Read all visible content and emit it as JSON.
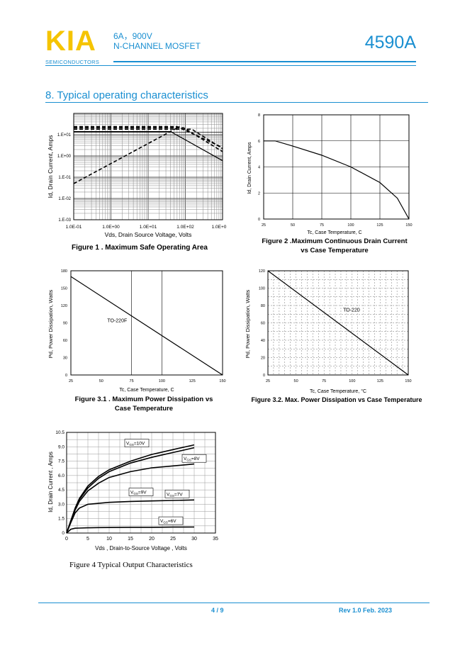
{
  "header": {
    "logo": "KIA",
    "subtitle": "SEMICONDUCTORS",
    "spec_line1": "6A，900V",
    "spec_line2": "N-CHANNEL MOSFET",
    "part_number": "4590A",
    "colors": {
      "brand_blue": "#1a8fd1",
      "logo_yellow": "#f5c400"
    }
  },
  "section_title": "8. Typical operating characteristics",
  "figures": {
    "fig1": {
      "caption": "Figure 1 . Maximum Safe Operating Area",
      "ylabel": "Id, Drain Current, Amps",
      "xlabel": "Vds, Drain Source Voltage, Volts",
      "xticks": [
        "1.0E-01",
        "1.0E+00",
        "1.0E+01",
        "1.0E+02",
        "1.0E+0"
      ],
      "yticks": [
        "1.E+01",
        "1.E+00",
        "1.E-01",
        "1.E-02",
        "1.E-03"
      ]
    },
    "fig2": {
      "caption_line1": "Figure 2 .Maximum Continuous Drain Current",
      "caption_line2": "vs Case Temperature",
      "ylabel": "Id, Drain Current, Amps",
      "xlabel": "Tc, Case Temperature, C",
      "xticks": [
        "25",
        "50",
        "75",
        "100",
        "125",
        "150"
      ],
      "yticks": [
        "8",
        "6",
        "4",
        "2",
        "0"
      ]
    },
    "fig31": {
      "caption_line1": "Figure 3.1 . Maximum Power Dissipation vs",
      "caption_line2": "Case Temperature",
      "ylabel": "Pd, Power Dissipation, Watts",
      "xlabel": "Tc, Case Temperature, C",
      "series_label": "TO-220F",
      "xticks": [
        "25",
        "50",
        "75",
        "100",
        "125",
        "150"
      ],
      "yticks": [
        "180",
        "150",
        "120",
        "90",
        "60",
        "30",
        "0"
      ]
    },
    "fig32": {
      "caption": "Figure 3.2. Max. Power Dissipation vs Case Temperature",
      "ylabel": "Pd, Power Dissipation, Watts",
      "xlabel": "Tc, Case Temperature, °C",
      "series_label": "TO-220",
      "xticks": [
        "25",
        "50",
        "75",
        "100",
        "125",
        "150"
      ],
      "yticks": [
        "120",
        "100",
        "80",
        "60",
        "40",
        "20",
        "0"
      ]
    },
    "fig4": {
      "caption": "Figure    4    Typical Output Characteristics",
      "ylabel": "Id, Drain Current , Amps",
      "xlabel": "Vds , Drain-to-Source Voltage , Volts",
      "xticks": [
        "0",
        "5",
        "10",
        "15",
        "20",
        "25",
        "30",
        "35"
      ],
      "yticks": [
        "10.5",
        "9.0",
        "7.5",
        "6.0",
        "4.5",
        "3.0",
        "1.5",
        "0"
      ],
      "labels": [
        "V",
        "V",
        "V",
        "V",
        "V"
      ],
      "label_main": [
        "GS",
        "GS",
        "GS",
        "GS",
        "GS"
      ],
      "label_values": [
        "=10V",
        "=8V",
        "=9V",
        "=7V",
        "=6V"
      ]
    }
  },
  "chart_data": [
    {
      "type": "line",
      "title": "Figure 1 . Maximum Safe Operating Area",
      "xlabel": "Vds, Drain Source Voltage, Volts",
      "ylabel": "Id, Drain Current, Amps",
      "xscale": "log",
      "yscale": "log",
      "xlim": [
        0.1,
        1000
      ],
      "ylim": [
        0.001,
        100
      ],
      "grid": true
    },
    {
      "type": "line",
      "title": "Figure 2 .Maximum Continuous Drain Current vs Case Temperature",
      "xlabel": "Tc, Case Temperature, C",
      "ylabel": "Id, Drain Current, Amps",
      "xlim": [
        25,
        150
      ],
      "ylim": [
        0,
        8
      ],
      "x": [
        25,
        35,
        50,
        75,
        100,
        125,
        140,
        150
      ],
      "series": [
        {
          "values": [
            6,
            6,
            5.6,
            4.9,
            4.0,
            2.8,
            1.6,
            0
          ]
        }
      ]
    },
    {
      "type": "line",
      "title": "Figure 3.1 . Maximum Power Dissipation vs Case Temperature",
      "xlabel": "Tc, Case Temperature, C",
      "ylabel": "Pd, Power Dissipation, Watts",
      "xlim": [
        25,
        150
      ],
      "ylim": [
        0,
        180
      ],
      "x": [
        25,
        150
      ],
      "series": [
        {
          "name": "TO-220F",
          "values": [
            170,
            0
          ]
        }
      ]
    },
    {
      "type": "line",
      "title": "Figure 3.2. Max. Power Dissipation vs Case Temperature",
      "xlabel": "Tc, Case Temperature, °C",
      "ylabel": "Pd, Power Dissipation, Watts",
      "xlim": [
        25,
        150
      ],
      "ylim": [
        0,
        120
      ],
      "x": [
        25,
        150
      ],
      "series": [
        {
          "name": "TO-220",
          "values": [
            120,
            0
          ]
        }
      ]
    },
    {
      "type": "line",
      "title": "Figure 4 Typical Output Characteristics",
      "xlabel": "Vds , Drain-to-Source Voltage , Volts",
      "ylabel": "Id, Drain Current , Amps",
      "xlim": [
        0,
        35
      ],
      "ylim": [
        0,
        10.5
      ],
      "x": [
        0,
        1,
        2,
        3,
        5,
        7.5,
        10,
        15,
        20,
        25,
        30
      ],
      "series": [
        {
          "name": "VGS=10V",
          "values": [
            0,
            1.3,
            2.6,
            3.6,
            4.9,
            5.9,
            6.6,
            7.5,
            8.2,
            8.7,
            9.2
          ]
        },
        {
          "name": "VGS=9V",
          "values": [
            0,
            1.3,
            2.5,
            3.5,
            4.7,
            5.7,
            6.4,
            7.3,
            7.9,
            8.4,
            8.9
          ]
        },
        {
          "name": "VGS=8V",
          "values": [
            0,
            1.2,
            2.4,
            3.3,
            4.4,
            5.2,
            5.8,
            6.4,
            6.8,
            7.0,
            7.2
          ]
        },
        {
          "name": "VGS=7V",
          "values": [
            0,
            1.1,
            2.1,
            2.6,
            3.0,
            3.1,
            3.2,
            3.3,
            3.35,
            3.4,
            3.45
          ]
        },
        {
          "name": "VGS=6V",
          "values": [
            0,
            0.4,
            0.5,
            0.52,
            0.55,
            0.57,
            0.58,
            0.6,
            0.6,
            0.62,
            0.63
          ]
        }
      ]
    }
  ],
  "footer": {
    "page": "4 / 9",
    "revision": "Rev 1.0 Feb. 2023"
  }
}
